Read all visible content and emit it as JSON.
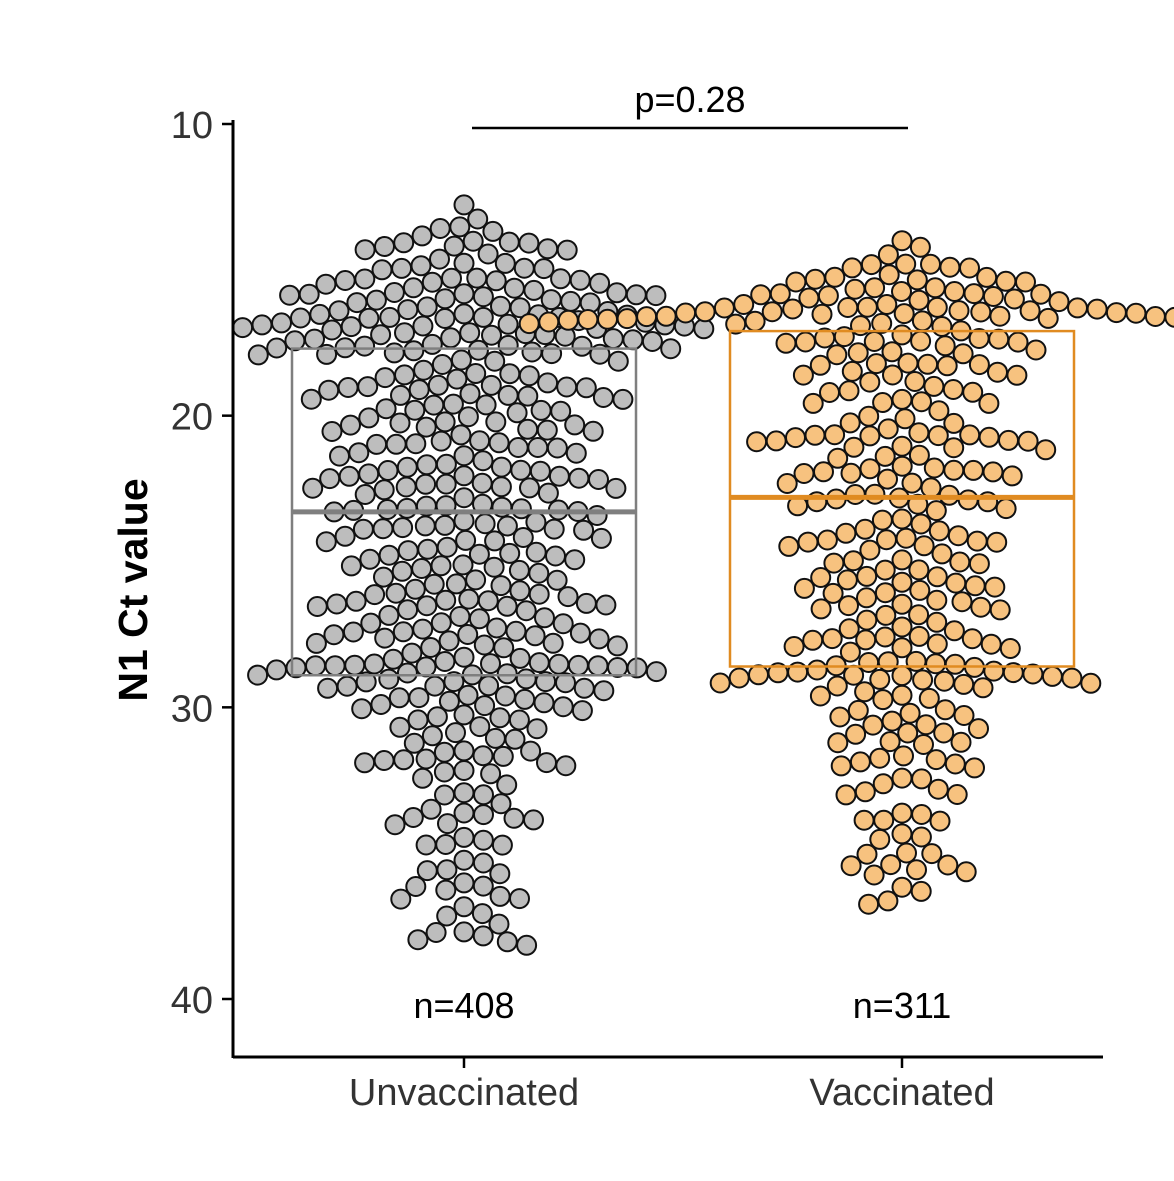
{
  "chart_data": {
    "type": "beeswarm-boxplot",
    "ylabel": "N1 Ct value",
    "xlabel": "",
    "ylim": [
      10,
      42
    ],
    "y_reversed": true,
    "y_ticks": [
      10,
      20,
      30,
      40
    ],
    "y_tick_labels": [
      "10",
      "20",
      "30",
      "40"
    ],
    "categories": [
      "Unvaccinated",
      "Vaccinated"
    ],
    "annotation": "p=0.28",
    "groups": [
      {
        "category": "Unvaccinated",
        "n_label": "n=408",
        "n": 408,
        "box": {
          "q1": 17.7,
          "median": 23.3,
          "q3": 28.9
        },
        "y_min": 12.4,
        "y_max": 38.3,
        "fill_color": "#bdbdbd",
        "box_color": "#7f7f7f"
      },
      {
        "category": "Vaccinated",
        "n_label": "n=311",
        "n": 311,
        "box": {
          "q1": 17.1,
          "median": 22.8,
          "q3": 28.6
        },
        "y_min": 14.0,
        "y_max": 37.0,
        "fill_color": "#f7c27f",
        "box_color": "#e08b21"
      }
    ]
  }
}
